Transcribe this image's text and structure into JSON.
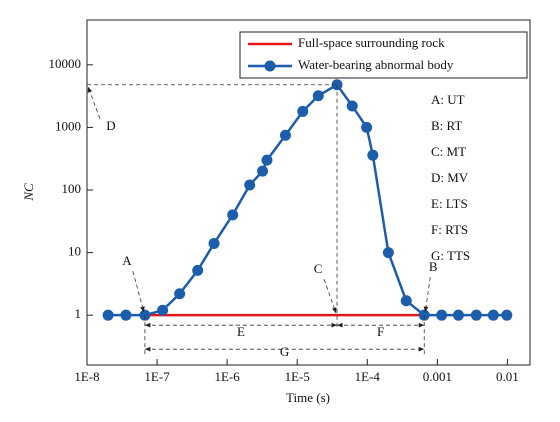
{
  "chart_data": {
    "type": "line",
    "xlabel": "Time (s)",
    "ylabel": "NC",
    "xscale": "log",
    "yscale": "log",
    "xlim": [
      1e-08,
      0.021
    ],
    "ylim": [
      0.16,
      52000
    ],
    "xticks": [
      {
        "value": 1e-08,
        "label": "1E-8"
      },
      {
        "value": 1e-07,
        "label": "1E-7"
      },
      {
        "value": 1e-06,
        "label": "1E-6"
      },
      {
        "value": 1e-05,
        "label": "1E-5"
      },
      {
        "value": 0.0001,
        "label": "1E-4"
      },
      0.001,
      0.01
    ],
    "yticks": [
      1,
      10,
      100,
      1000,
      10000
    ],
    "legend": "upper right",
    "series": [
      {
        "name": "Full-space surrounding rock",
        "color": "#e8141c",
        "marker": false,
        "x": [
          6.7e-08,
          0.00065
        ],
        "values": [
          1,
          1
        ]
      },
      {
        "name": "Water-bearing abnormal body",
        "color": "#1c5eab",
        "marker": true,
        "x": [
          2e-08,
          3.6e-08,
          6.7e-08,
          1.2e-07,
          2.1e-07,
          3.8e-07,
          6.5e-07,
          1.2e-06,
          2.1e-06,
          3.2e-06,
          3.7e-06,
          6.8e-06,
          1.2e-05,
          2e-05,
          3.7e-05,
          6.1e-05,
          9.8e-05,
          0.00012,
          0.0002,
          0.00036,
          0.00065,
          0.00115,
          0.002,
          0.0036,
          0.0063,
          0.0098
        ],
        "values": [
          1,
          1,
          1,
          1.2,
          2.2,
          5.2,
          14,
          40,
          120,
          200,
          300,
          750,
          1800,
          3200,
          4800,
          2200,
          1000,
          360,
          10,
          1.7,
          1,
          1,
          1,
          1,
          1,
          1
        ]
      }
    ],
    "annotations": {
      "A": "A",
      "B": "B",
      "C": "C",
      "D": "D",
      "E": "E",
      "F": "F",
      "G": "G"
    },
    "key": [
      "A:  UT",
      "B:  RT",
      "C:  MT",
      "D:  MV",
      "E:  LTS",
      "F:  RTS",
      "G:  TTS"
    ]
  }
}
